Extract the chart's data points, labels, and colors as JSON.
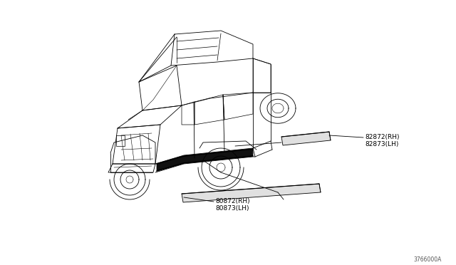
{
  "background_color": "#ffffff",
  "line_color": "#000000",
  "label1_line1": "82872(RH)",
  "label1_line2": "82873(LH)",
  "label2_line1": "80872(RH)",
  "label2_line2": "80873(LH)",
  "diagram_code": "3766000A",
  "font_size": 6.5,
  "figwidth": 6.4,
  "figheight": 3.72,
  "dpi": 100,
  "car_lw": 0.6,
  "strip_lw": 0.7
}
